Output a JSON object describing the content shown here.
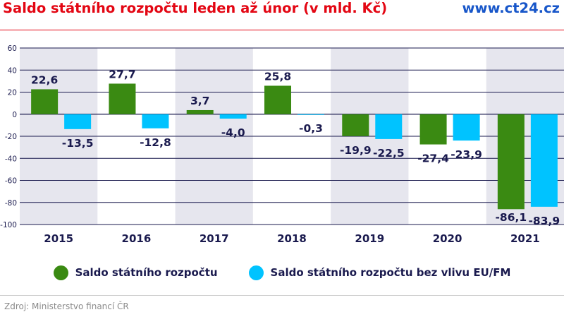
{
  "header": {
    "title": "Saldo státního rozpočtu leden až únor (v mld. Kč)",
    "brand": "www.ct24.cz"
  },
  "footer": {
    "source": "Zdroj: Ministerstvo financí ČR"
  },
  "colors": {
    "title": "#e30613",
    "brand": "#1756c9",
    "series_1": "#3a8a12",
    "series_2": "#00c3ff",
    "band": "#e6e6ee",
    "grid": "#1a1a4e",
    "text": "#1a1a4e"
  },
  "chart_data": {
    "type": "bar",
    "title": "Saldo státního rozpočtu leden až únor (v mld. Kč)",
    "categories": [
      "2015",
      "2016",
      "2017",
      "2018",
      "2019",
      "2020",
      "2021"
    ],
    "series": [
      {
        "name": "Saldo státního rozpočtu",
        "values": [
          22.6,
          27.7,
          3.7,
          25.8,
          -19.9,
          -27.4,
          -86.1
        ],
        "labels": [
          "22,6",
          "27,7",
          "3,7",
          "25,8",
          "-19,9",
          "-27,4",
          "-86,1"
        ]
      },
      {
        "name": "Saldo státního rozpočtu bez vlivu EU/FM",
        "values": [
          -13.5,
          -12.8,
          -4.0,
          -0.3,
          -22.5,
          -23.9,
          -83.9
        ],
        "labels": [
          "-13,5",
          "-12,8",
          "-4,0",
          "-0,3",
          "-22,5",
          "-23,9",
          "-83,9"
        ]
      }
    ],
    "yticks": [
      60,
      40,
      20,
      0,
      -20,
      -40,
      -60,
      -80,
      -100
    ],
    "ytick_labels": [
      "60",
      "40",
      "20",
      "0",
      "-20",
      "-40",
      "-60",
      "-80",
      "-100"
    ],
    "ylim": [
      -100,
      60
    ],
    "grid": true,
    "legend": "bottom"
  }
}
